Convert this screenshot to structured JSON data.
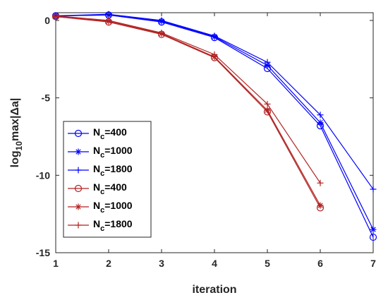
{
  "chart_data": {
    "type": "line",
    "xlabel": "iteration",
    "ylabel_parts": {
      "base": "log",
      "sub": "10",
      "rest": "max|Δa|"
    },
    "xlim": [
      1,
      7
    ],
    "ylim": [
      -15,
      0.5
    ],
    "xticks": [
      1,
      2,
      3,
      4,
      5,
      6,
      7
    ],
    "yticks": [
      0,
      -5,
      -10,
      -15
    ],
    "grid": false,
    "legend_position": "bottom-left",
    "series": [
      {
        "legend_main": "N",
        "legend_sub": "c",
        "legend_value": "=400",
        "color": "#0000ff",
        "marker": "circle",
        "x": [
          1,
          2,
          3,
          4,
          5,
          6,
          7
        ],
        "y": [
          0.3,
          0.35,
          -0.1,
          -1.1,
          -3.1,
          -6.8,
          -14.0
        ]
      },
      {
        "legend_main": "N",
        "legend_sub": "c",
        "legend_value": "=1000",
        "color": "#0000ff",
        "marker": "star",
        "x": [
          1,
          2,
          3,
          4,
          5,
          6,
          7
        ],
        "y": [
          0.3,
          0.35,
          -0.05,
          -1.05,
          -2.9,
          -6.6,
          -13.5
        ]
      },
      {
        "legend_main": "N",
        "legend_sub": "c",
        "legend_value": "=1800",
        "color": "#0000ff",
        "marker": "plus",
        "x": [
          1,
          2,
          3,
          4,
          5,
          6,
          7
        ],
        "y": [
          0.3,
          0.4,
          0.0,
          -1.0,
          -2.7,
          -6.1,
          -10.9
        ]
      },
      {
        "legend_main": "N",
        "legend_sub": "c",
        "legend_value": "=400",
        "color": "#b22222",
        "marker": "circle",
        "x": [
          1,
          2,
          3,
          4,
          5,
          6
        ],
        "y": [
          0.25,
          -0.1,
          -0.9,
          -2.4,
          -5.9,
          -12.1
        ]
      },
      {
        "legend_main": "N",
        "legend_sub": "c",
        "legend_value": "=1000",
        "color": "#b22222",
        "marker": "star",
        "x": [
          1,
          2,
          3,
          4,
          5,
          6
        ],
        "y": [
          0.25,
          -0.05,
          -0.85,
          -2.35,
          -5.8,
          -11.95
        ]
      },
      {
        "legend_main": "N",
        "legend_sub": "c",
        "legend_value": "=1800",
        "color": "#b22222",
        "marker": "plus",
        "x": [
          1,
          2,
          3,
          4,
          5,
          6
        ],
        "y": [
          0.3,
          0.0,
          -0.8,
          -2.2,
          -5.4,
          -10.5
        ]
      }
    ]
  }
}
